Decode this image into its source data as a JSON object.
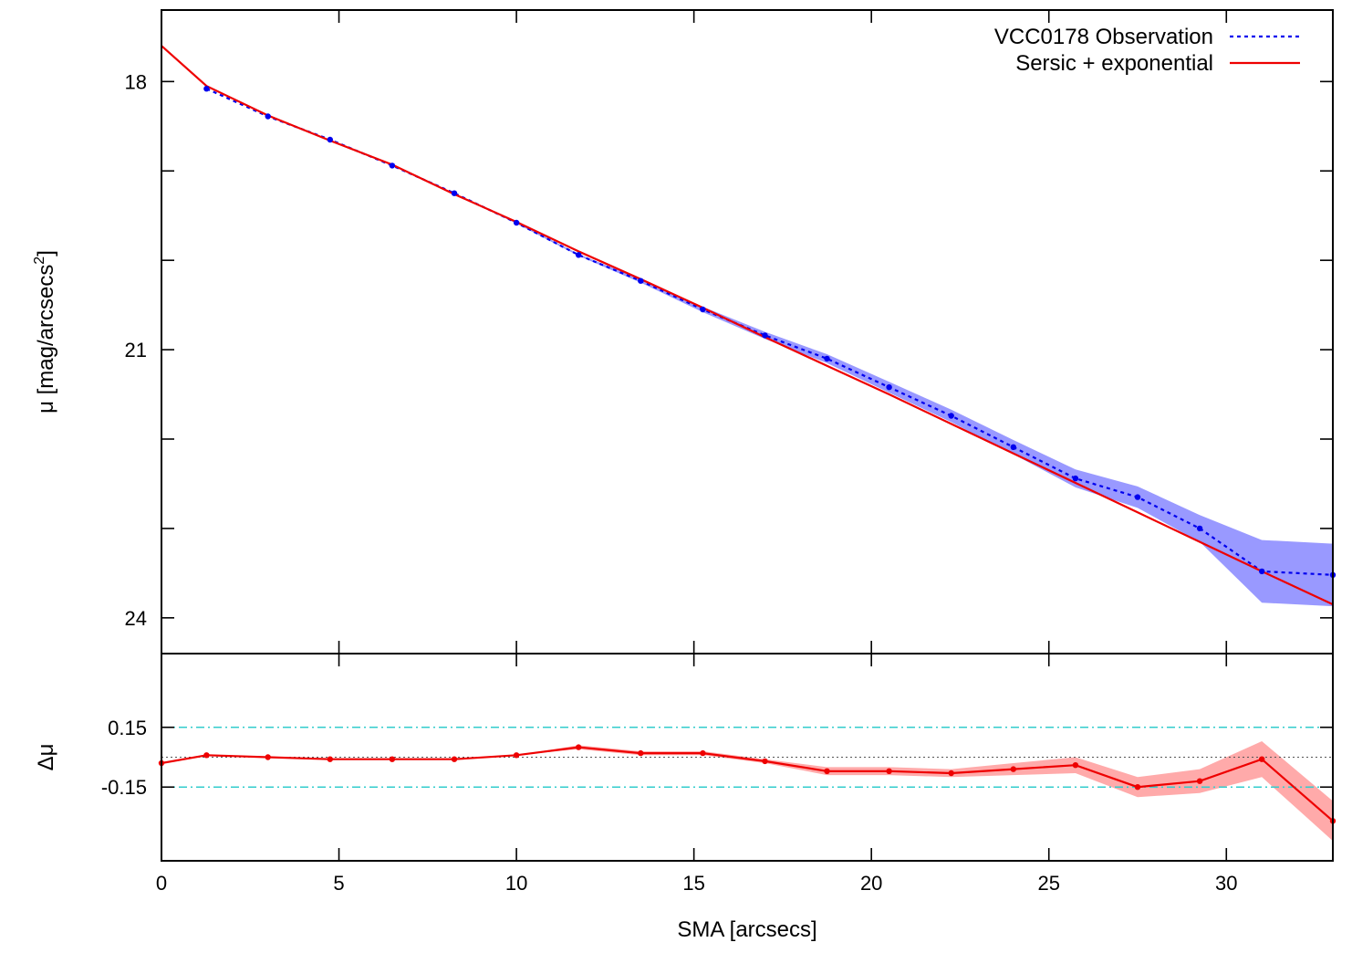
{
  "chart_data": {
    "type": "line",
    "xlabel": "SMA [arcsecs]",
    "xlim": [
      0,
      33
    ],
    "xticks": [
      0,
      5,
      10,
      15,
      20,
      25,
      30
    ],
    "panels": [
      {
        "id": "profile",
        "ylabel_main": "μ [mag/arcsecs",
        "ylabel_sup": "2",
        "ylabel_close": "]",
        "ylim": [
          17.2,
          24.4
        ],
        "y_inverted": true,
        "yticks_major_labeled": [
          18,
          21,
          24
        ],
        "yticks_minor": [
          19,
          20,
          22,
          23
        ],
        "legend_position": "top-right",
        "series": [
          {
            "name": "VCC0178 Observation",
            "style": "dotted",
            "color": "#0000ee",
            "band_color": "#9999ff",
            "x": [
              1.27,
              3.0,
              4.75,
              6.5,
              8.25,
              10.0,
              11.75,
              13.5,
              15.25,
              17.0,
              18.75,
              20.5,
              22.25,
              24.0,
              25.75,
              27.5,
              29.25,
              31.0,
              33.0
            ],
            "y": [
              18.08,
              18.39,
              18.65,
              18.94,
              19.25,
              19.58,
              19.94,
              20.23,
              20.55,
              20.84,
              21.1,
              21.42,
              21.74,
              22.09,
              22.44,
              22.65,
              23.0,
              23.48,
              23.52
            ],
            "err": [
              0.0,
              0.0,
              0.0,
              0.0,
              0.0,
              0.01,
              0.01,
              0.02,
              0.03,
              0.04,
              0.05,
              0.06,
              0.07,
              0.08,
              0.1,
              0.12,
              0.15,
              0.35,
              0.35
            ],
            "markers": true
          },
          {
            "name": "Sersic + exponential",
            "style": "solid",
            "color": "#ee0000",
            "x": [
              0,
              1.27,
              3.0,
              4.75,
              6.5,
              8.25,
              10.0,
              11.75,
              13.5,
              15.25,
              17.0,
              18.75,
              20.5,
              22.25,
              24.0,
              25.75,
              27.5,
              29.25,
              31.0,
              33.0
            ],
            "y": [
              17.6,
              18.05,
              18.38,
              18.66,
              18.93,
              19.26,
              19.57,
              19.9,
              20.21,
              20.53,
              20.86,
              21.18,
              21.5,
              21.83,
              22.16,
              22.49,
              22.82,
              23.15,
              23.48,
              23.85
            ]
          }
        ]
      },
      {
        "id": "residual",
        "ylabel": "Δμ",
        "ylim": [
          -0.52,
          0.52
        ],
        "yticks_labeled": [
          {
            "value": 0.15,
            "label": "0.15"
          },
          {
            "value": -0.15,
            "label": "-0.15"
          }
        ],
        "reference_lines": [
          {
            "value": 0.15,
            "style": "dash-dot",
            "color": "#33cccc"
          },
          {
            "value": -0.15,
            "style": "dash-dot",
            "color": "#33cccc"
          },
          {
            "value": 0.0,
            "style": "dotted",
            "color": "#555555"
          }
        ],
        "series": [
          {
            "name": "residual",
            "style": "solid",
            "color": "#ee0000",
            "band_color": "#ffaaaa",
            "markers": true,
            "x": [
              0,
              1.27,
              3.0,
              4.75,
              6.5,
              8.25,
              10.0,
              11.75,
              13.5,
              15.25,
              17.0,
              18.75,
              20.5,
              22.25,
              24.0,
              25.75,
              27.5,
              29.25,
              31.0,
              33.0
            ],
            "y": [
              -0.03,
              0.01,
              0.0,
              -0.01,
              -0.01,
              -0.01,
              0.01,
              0.05,
              0.02,
              0.02,
              -0.02,
              -0.07,
              -0.07,
              -0.08,
              -0.06,
              -0.04,
              -0.15,
              -0.12,
              -0.01,
              -0.32
            ],
            "err": [
              0.0,
              0.0,
              0.0,
              0.0,
              0.0,
              0.0,
              0.0,
              0.01,
              0.01,
              0.01,
              0.01,
              0.02,
              0.02,
              0.02,
              0.03,
              0.04,
              0.05,
              0.06,
              0.09,
              0.1
            ]
          }
        ]
      }
    ]
  }
}
